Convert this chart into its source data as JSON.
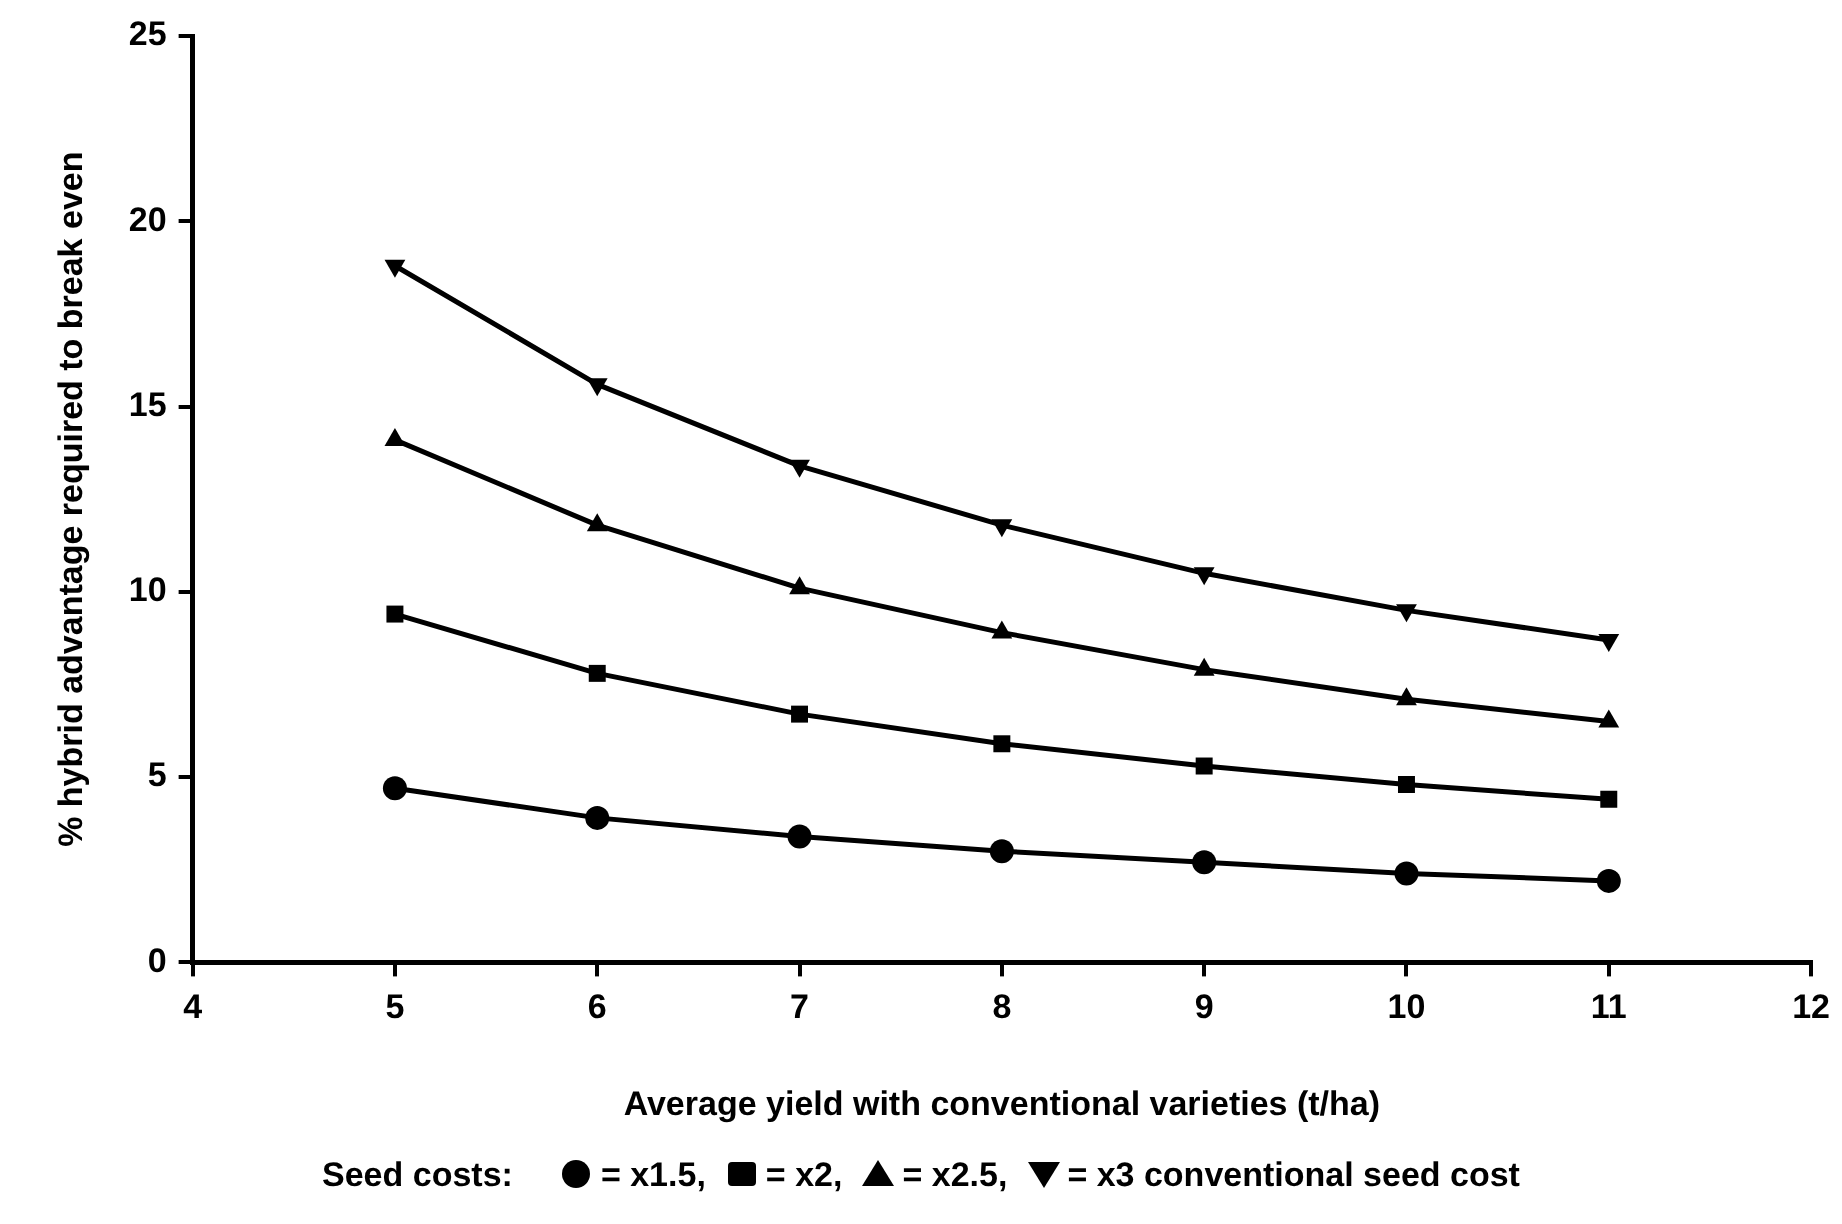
{
  "chart_data": {
    "type": "line",
    "xlabel": "Average yield with conventional varieties (t/ha)",
    "ylabel": "% hybrid advantage required to break even",
    "legend_title": "Seed costs:",
    "legend": "bottom",
    "grid": false,
    "line_style": "solid",
    "x": [
      5,
      6,
      7,
      8,
      9,
      10,
      11
    ],
    "xlim": [
      4,
      12
    ],
    "xticks": [
      4,
      5,
      6,
      7,
      8,
      9,
      10,
      11,
      12
    ],
    "ylim": [
      0,
      25
    ],
    "yticks": [
      0,
      5,
      10,
      15,
      20,
      25
    ],
    "series": [
      {
        "name": "= x1.5,",
        "color": "#000000",
        "marker": "circle",
        "values": [
          4.7,
          3.9,
          3.4,
          3.0,
          2.7,
          2.4,
          2.2
        ]
      },
      {
        "name": "= x2,",
        "color": "#000000",
        "marker": "square",
        "values": [
          9.4,
          7.8,
          6.7,
          5.9,
          5.3,
          4.8,
          4.4
        ]
      },
      {
        "name": "= x2.5,",
        "color": "#000000",
        "marker": "triangle",
        "values": [
          14.1,
          11.8,
          10.1,
          8.9,
          7.9,
          7.1,
          6.5
        ]
      },
      {
        "name": "= x3 conventional seed cost",
        "color": "#000000",
        "marker": "triangle-down",
        "values": [
          18.8,
          15.6,
          13.4,
          11.8,
          10.5,
          9.5,
          8.7
        ]
      }
    ]
  }
}
